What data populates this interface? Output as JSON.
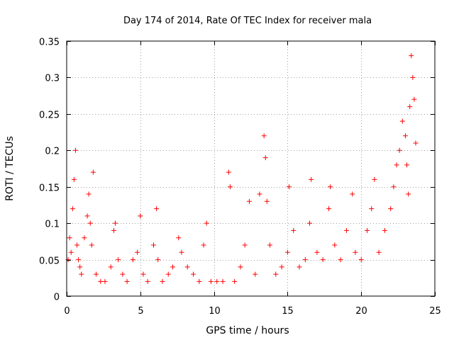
{
  "chart_data": {
    "type": "scatter",
    "title": "Day 174 of 2014, Rate Of TEC Index for receiver mala",
    "xlabel": "GPS time / hours",
    "ylabel": "ROTI / TECUs",
    "xlim": [
      0,
      25
    ],
    "ylim": [
      0,
      0.35
    ],
    "xticks": [
      0,
      5,
      10,
      15,
      20,
      25
    ],
    "xtick_labels": [
      "0",
      "5",
      "10",
      "15",
      "20",
      "25"
    ],
    "yticks": [
      0,
      0.05,
      0.1,
      0.15,
      0.2,
      0.25,
      0.3,
      0.35
    ],
    "ytick_labels": [
      "0",
      "0.05",
      "0.1",
      "0.15",
      "0.2",
      "0.25",
      "0.3",
      "0.35"
    ],
    "grid": true,
    "marker": "+",
    "marker_color": "#ff0000",
    "series": [
      {
        "name": "ROTI",
        "x": [
          0.1,
          0.2,
          0.3,
          0.4,
          0.5,
          0.6,
          0.7,
          0.8,
          0.9,
          1.0,
          1.2,
          1.4,
          1.5,
          1.6,
          1.7,
          1.8,
          2.0,
          2.3,
          2.6,
          3.0,
          3.2,
          3.3,
          3.5,
          3.8,
          4.1,
          4.5,
          4.8,
          5.0,
          5.2,
          5.5,
          5.9,
          6.1,
          6.2,
          6.5,
          6.9,
          7.2,
          7.6,
          7.8,
          8.2,
          8.6,
          9.0,
          9.3,
          9.5,
          9.8,
          10.2,
          10.6,
          11.0,
          11.1,
          11.4,
          11.8,
          12.1,
          12.4,
          12.8,
          13.1,
          13.4,
          13.5,
          13.6,
          13.8,
          14.2,
          14.6,
          15.0,
          15.1,
          15.4,
          15.8,
          16.2,
          16.5,
          16.6,
          17.0,
          17.4,
          17.8,
          17.9,
          18.2,
          18.6,
          19.0,
          19.4,
          19.6,
          20.0,
          20.4,
          20.7,
          20.9,
          21.2,
          21.6,
          22.0,
          22.2,
          22.4,
          22.6,
          22.8,
          23.0,
          23.1,
          23.2,
          23.3,
          23.4,
          23.5,
          23.6,
          23.7
        ],
        "y": [
          0.05,
          0.08,
          0.06,
          0.12,
          0.16,
          0.2,
          0.07,
          0.05,
          0.04,
          0.03,
          0.08,
          0.11,
          0.14,
          0.1,
          0.07,
          0.17,
          0.03,
          0.02,
          0.02,
          0.04,
          0.09,
          0.1,
          0.05,
          0.03,
          0.02,
          0.05,
          0.06,
          0.11,
          0.03,
          0.02,
          0.07,
          0.12,
          0.05,
          0.02,
          0.03,
          0.04,
          0.08,
          0.06,
          0.04,
          0.03,
          0.02,
          0.07,
          0.1,
          0.02,
          0.02,
          0.02,
          0.17,
          0.15,
          0.02,
          0.04,
          0.07,
          0.13,
          0.03,
          0.14,
          0.22,
          0.19,
          0.13,
          0.07,
          0.03,
          0.04,
          0.06,
          0.15,
          0.09,
          0.04,
          0.05,
          0.1,
          0.16,
          0.06,
          0.05,
          0.12,
          0.15,
          0.07,
          0.05,
          0.09,
          0.14,
          0.06,
          0.05,
          0.09,
          0.12,
          0.16,
          0.06,
          0.09,
          0.12,
          0.15,
          0.18,
          0.2,
          0.24,
          0.22,
          0.18,
          0.14,
          0.26,
          0.33,
          0.3,
          0.27,
          0.21
        ]
      }
    ]
  }
}
